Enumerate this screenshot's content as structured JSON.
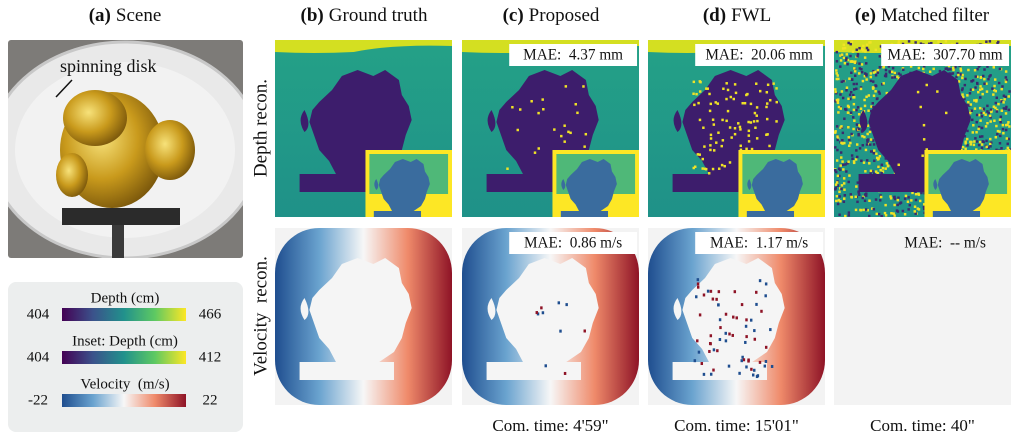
{
  "panels": [
    {
      "tag": "(a)",
      "title": "Scene"
    },
    {
      "tag": "(b)",
      "title": "Ground truth"
    },
    {
      "tag": "(c)",
      "title": "Proposed"
    },
    {
      "tag": "(d)",
      "title": "FWL"
    },
    {
      "tag": "(e)",
      "title": "Matched filter"
    }
  ],
  "scene_annotation": "spinning disk",
  "row_labels": [
    "Depth recon.",
    "Velocity  recon."
  ],
  "mae": {
    "depth": [
      "MAE:  4.37 mm",
      "MAE:  20.06 mm",
      "MAE:  307.70 mm"
    ],
    "velocity": [
      "MAE:  0.86 m/s",
      "MAE:  1.17 m/s",
      "MAE:  -- m/s"
    ]
  },
  "computation_time": [
    "Com. time: 4'59\"",
    "Com. time: 15'01\"",
    "Com. time: 40\""
  ],
  "colorbars": [
    {
      "label": "Depth (cm)",
      "min": 404,
      "max": 466
    },
    {
      "label": "Inset: Depth (cm)",
      "min": 404,
      "max": 412
    },
    {
      "label": "Velocity  (m/s)",
      "min": -22,
      "max": 22
    }
  ]
}
